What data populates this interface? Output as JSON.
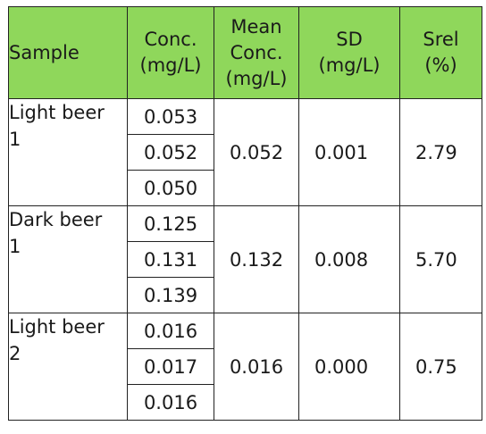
{
  "table": {
    "headers": {
      "sample": "Sample",
      "conc": "Conc.\n(mg/L)",
      "mean": "Mean\nConc.\n(mg/L)",
      "sd": "SD\n(mg/L)",
      "srel": "Srel\n(%)"
    },
    "groups": [
      {
        "sample": "Light beer\n1",
        "conc": [
          "0.053",
          "0.052",
          "0.050"
        ],
        "mean": "0.052",
        "sd": "0.001",
        "srel": "2.79"
      },
      {
        "sample": "Dark beer\n1",
        "conc": [
          "0.125",
          "0.131",
          "0.139"
        ],
        "mean": "0.132",
        "sd": "0.008",
        "srel": "5.70"
      },
      {
        "sample": "Light beer\n2",
        "conc": [
          "0.016",
          "0.017",
          "0.016"
        ],
        "mean": "0.016",
        "sd": "0.000",
        "srel": "0.75"
      }
    ],
    "colors": {
      "header_bg": "#8fd75b",
      "border": "#222222",
      "text": "#1a1a1a"
    }
  }
}
